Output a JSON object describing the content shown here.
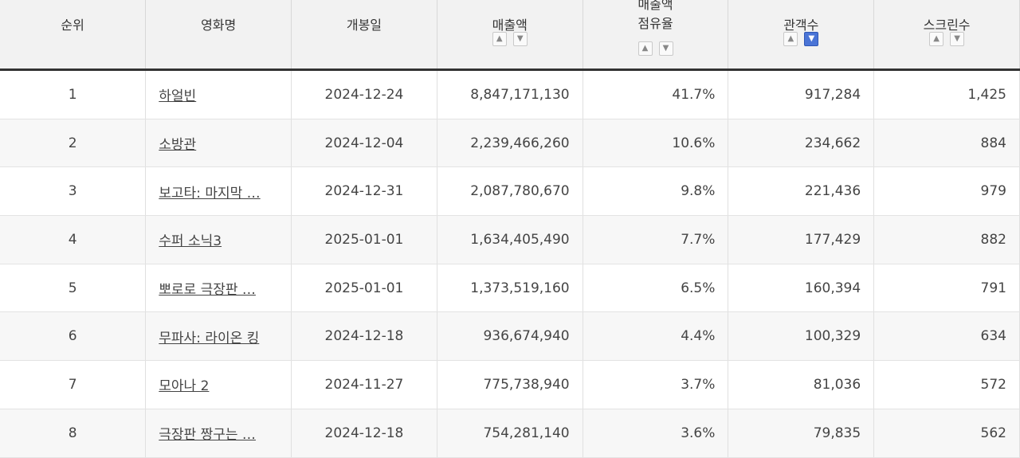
{
  "columns": {
    "rank": "순위",
    "title": "영화명",
    "release": "개봉일",
    "sales": "매출액",
    "share_line1": "매출액",
    "share_line2": "점유율",
    "audience": "관객수",
    "screens": "스크린수"
  },
  "sort_icons": {
    "up": "▲",
    "down": "▼"
  },
  "active_sort": "audience-desc",
  "colors": {
    "header_bg": "#f2f2f2",
    "active_sort": "#4a74d6"
  },
  "rows": [
    {
      "rank": "1",
      "title": "하얼빈",
      "release": "2024-12-24",
      "sales": "8,847,171,130",
      "share": "41.7%",
      "audience": "917,284",
      "screens": "1,425"
    },
    {
      "rank": "2",
      "title": "소방관",
      "release": "2024-12-04",
      "sales": "2,239,466,260",
      "share": "10.6%",
      "audience": "234,662",
      "screens": "884"
    },
    {
      "rank": "3",
      "title": "보고타: 마지막 …",
      "release": "2024-12-31",
      "sales": "2,087,780,670",
      "share": "9.8%",
      "audience": "221,436",
      "screens": "979"
    },
    {
      "rank": "4",
      "title": "수퍼 소닉3",
      "release": "2025-01-01",
      "sales": "1,634,405,490",
      "share": "7.7%",
      "audience": "177,429",
      "screens": "882"
    },
    {
      "rank": "5",
      "title": "뽀로로 극장판 …",
      "release": "2025-01-01",
      "sales": "1,373,519,160",
      "share": "6.5%",
      "audience": "160,394",
      "screens": "791"
    },
    {
      "rank": "6",
      "title": "무파사: 라이온 킹",
      "release": "2024-12-18",
      "sales": "936,674,940",
      "share": "4.4%",
      "audience": "100,329",
      "screens": "634"
    },
    {
      "rank": "7",
      "title": "모아나 2",
      "release": "2024-11-27",
      "sales": "775,738,940",
      "share": "3.7%",
      "audience": "81,036",
      "screens": "572"
    },
    {
      "rank": "8",
      "title": "극장판 짱구는 …",
      "release": "2024-12-18",
      "sales": "754,281,140",
      "share": "3.6%",
      "audience": "79,835",
      "screens": "562"
    }
  ]
}
